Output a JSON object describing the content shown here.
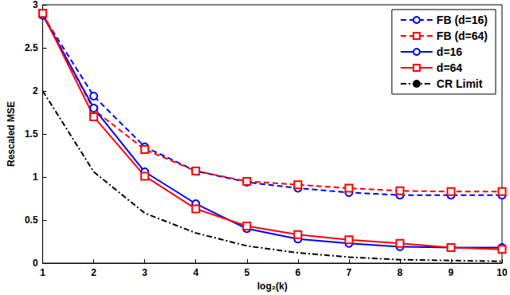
{
  "chart_data": {
    "type": "line",
    "x_label": "log₂(k)",
    "y_label": "Rescaled MSE",
    "x": [
      1,
      2,
      3,
      4,
      5,
      6,
      7,
      8,
      9,
      10
    ],
    "xlim": [
      1,
      10
    ],
    "xticks": [
      1,
      2,
      3,
      4,
      5,
      6,
      7,
      8,
      9,
      10
    ],
    "ylim": [
      0,
      3
    ],
    "yticks": [
      0,
      0.5,
      1,
      1.5,
      2,
      2.5,
      3
    ],
    "grid": false,
    "legend": "top-right",
    "series": [
      {
        "name": "FB (d=16)",
        "color": "#0000ff",
        "marker": "circle",
        "line_style": "dashed",
        "values": [
          2.88,
          1.94,
          1.35,
          1.07,
          0.94,
          0.87,
          0.82,
          0.79,
          0.79,
          0.79
        ]
      },
      {
        "name": "FB (d=64)",
        "color": "#ff0000",
        "marker": "square",
        "line_style": "dashed",
        "values": [
          2.9,
          1.78,
          1.32,
          1.07,
          0.95,
          0.91,
          0.87,
          0.84,
          0.83,
          0.83
        ]
      },
      {
        "name": "d=16",
        "color": "#0000ff",
        "marker": "circle",
        "line_style": "solid",
        "values": [
          2.88,
          1.8,
          1.06,
          0.69,
          0.4,
          0.28,
          0.23,
          0.19,
          0.18,
          0.18
        ]
      },
      {
        "name": "d=64",
        "color": "#ff0000",
        "marker": "square",
        "line_style": "solid",
        "values": [
          2.9,
          1.7,
          1.01,
          0.63,
          0.43,
          0.33,
          0.27,
          0.23,
          0.18,
          0.16
        ]
      },
      {
        "name": "CR Limit",
        "color": "#000000",
        "marker": "none",
        "line_style": "dashdot",
        "values": [
          2.0,
          1.06,
          0.58,
          0.35,
          0.2,
          0.12,
          0.07,
          0.04,
          0.03,
          0.02
        ]
      }
    ]
  }
}
